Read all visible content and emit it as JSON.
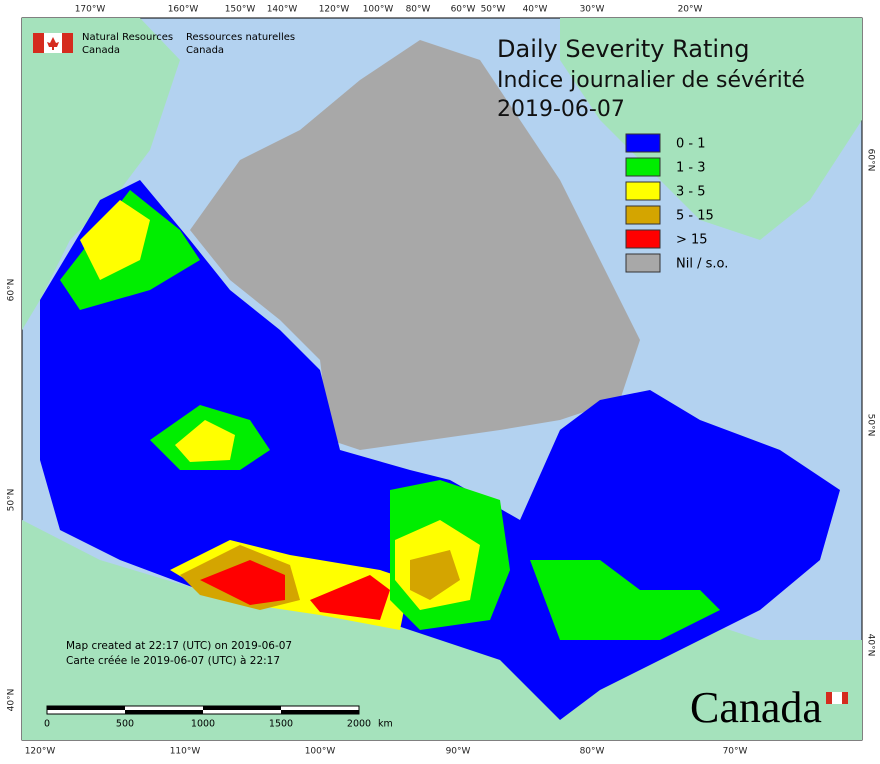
{
  "logo": {
    "en_line1": "Natural Resources",
    "en_line2": "Canada",
    "fr_line1": "Ressources naturelles",
    "fr_line2": "Canada"
  },
  "title": {
    "en": "Daily Severity Rating",
    "fr": "Indice journalier de sévérité",
    "date": "2019-06-07"
  },
  "legend": [
    {
      "label": "0 - 1",
      "color": "#0000ff"
    },
    {
      "label": "1 - 3",
      "color": "#00ee00"
    },
    {
      "label": "3 - 5",
      "color": "#ffff00"
    },
    {
      "label": "5 - 15",
      "color": "#d4a500"
    },
    {
      "label": "> 15",
      "color": "#ff0000"
    },
    {
      "label": "Nil / s.o.",
      "color": "#a8a8a8"
    }
  ],
  "top_ticks": [
    "170°W",
    "160°W",
    "150°W",
    "140°W",
    "120°W",
    "100°W",
    "80°W",
    "60°W",
    "50°W",
    "40°W",
    "30°W",
    "20°W"
  ],
  "bottom_ticks": [
    "120°W",
    "110°W",
    "100°W",
    "90°W",
    "80°W",
    "70°W"
  ],
  "left_ticks": [
    "60°N",
    "50°N",
    "40°N"
  ],
  "right_ticks": [
    "60°N",
    "50°N",
    "40°N"
  ],
  "footer": {
    "created_en": "Map created at 22:17 (UTC) on 2019-06-07",
    "created_fr": "Carte créée le 2019-06-07 (UTC) à 22:17"
  },
  "scale_bar": {
    "labels": [
      "0",
      "500",
      "1000",
      "1500",
      "2000"
    ],
    "unit": "km"
  },
  "wordmark": "Canada"
}
